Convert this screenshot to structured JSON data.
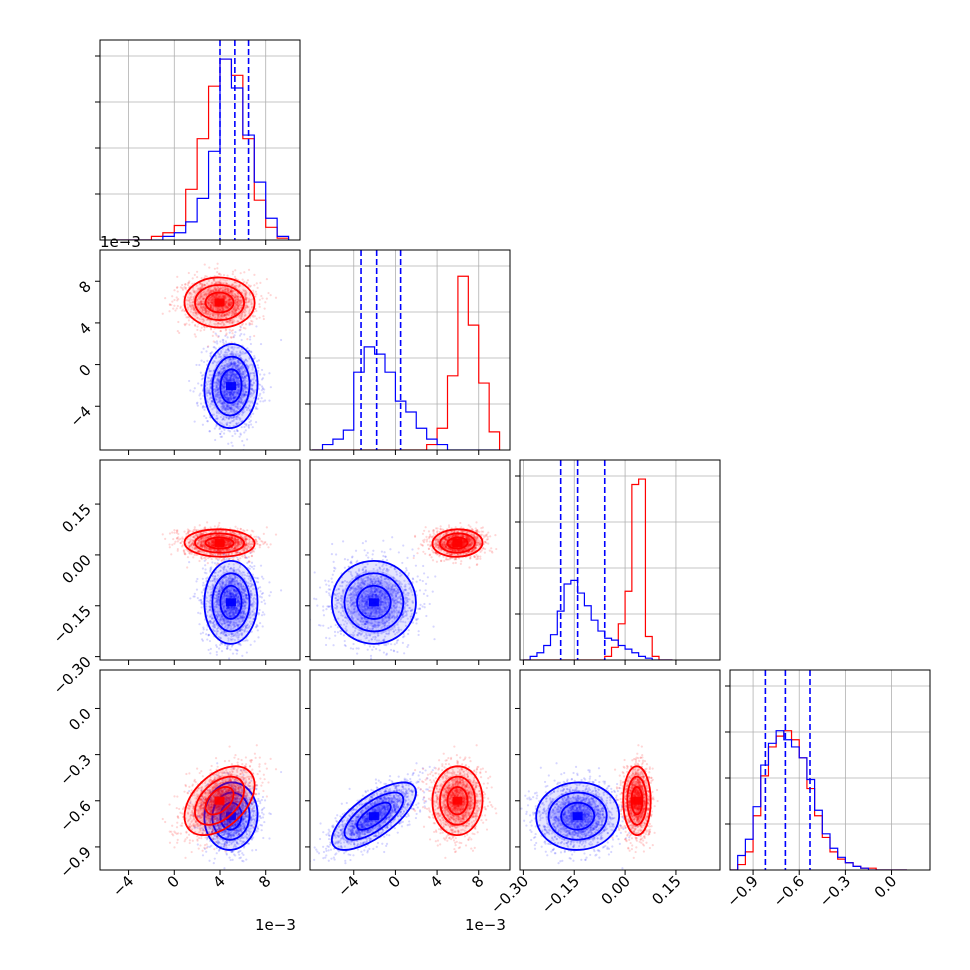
{
  "chart_data": {
    "type": "corner",
    "series": [
      {
        "name": "",
        "color": "#0000ff"
      },
      {
        "name": "",
        "color": "#ff0000"
      }
    ],
    "params": [
      {
        "range": [
          -6.5,
          11
        ],
        "ticks": [
          -4,
          0,
          4,
          8
        ],
        "tick_labels": [
          "−4",
          "0",
          "4",
          "8"
        ],
        "offset_text": "1e−3"
      },
      {
        "range": [
          -8.2,
          11
        ],
        "ticks": [
          -4,
          0,
          4,
          8
        ],
        "tick_labels": [
          "−4",
          "0",
          "4",
          "8"
        ],
        "offset_text": "1e−3"
      },
      {
        "range": [
          -0.31,
          0.28
        ],
        "ticks": [
          -0.3,
          -0.15,
          0.0,
          0.15
        ],
        "tick_labels": [
          "−0.30",
          "−0.15",
          "0.00",
          "0.15"
        ],
        "offset_text": ""
      },
      {
        "range": [
          -1.05,
          0.25
        ],
        "ticks": [
          -0.9,
          -0.6,
          -0.3,
          0.0
        ],
        "tick_labels": [
          "−0.9",
          "−0.6",
          "−0.3",
          "0.0"
        ],
        "offset_text": ""
      }
    ],
    "quantiles": [
      [
        4.0,
        5.3,
        6.5
      ],
      [
        -3.3,
        -1.8,
        0.5
      ],
      [
        -0.19,
        -0.14,
        -0.06
      ],
      [
        -0.82,
        -0.69,
        -0.53
      ]
    ],
    "histograms": [
      {
        "bin_edges": [
          -5.0,
          -4.0,
          -3.0,
          -2.0,
          -1.0,
          0.0,
          1.0,
          2.0,
          3.0,
          4.0,
          5.0,
          6.0,
          7.0,
          8.0,
          9.0,
          10.0
        ],
        "blue": [
          0.0,
          0.0,
          0.0,
          0.0,
          0.02,
          0.04,
          0.1,
          0.23,
          0.49,
          1.0,
          0.84,
          0.58,
          0.32,
          0.12,
          0.02
        ],
        "red": [
          0.0,
          0.0,
          0.0,
          0.02,
          0.04,
          0.08,
          0.28,
          0.56,
          0.85,
          1.0,
          0.91,
          0.56,
          0.22,
          0.07,
          0.01
        ]
      },
      {
        "bin_edges": [
          -8.0,
          -7.0,
          -6.0,
          -5.0,
          -4.0,
          -3.0,
          -2.0,
          -1.0,
          0.0,
          1.0,
          2.0,
          3.0,
          4.0,
          5.0,
          6.0,
          7.0,
          8.0,
          9.0,
          10.0
        ],
        "blue": [
          0.0,
          0.03,
          0.06,
          0.11,
          0.43,
          0.57,
          0.53,
          0.43,
          0.27,
          0.21,
          0.12,
          0.06,
          0.03,
          0.0,
          0.0,
          0.0,
          0.0,
          0.0
        ],
        "red": [
          0.0,
          0.0,
          0.0,
          0.0,
          0.0,
          0.0,
          0.0,
          0.0,
          0.0,
          0.0,
          0.0,
          0.03,
          0.12,
          0.41,
          0.96,
          0.69,
          0.37,
          0.1
        ]
      },
      {
        "bin_edges": [
          -0.3,
          -0.28,
          -0.26,
          -0.24,
          -0.22,
          -0.2,
          -0.18,
          -0.16,
          -0.14,
          -0.12,
          -0.1,
          -0.08,
          -0.06,
          -0.04,
          -0.02,
          0.0,
          0.02,
          0.04,
          0.06,
          0.08,
          0.1,
          0.12,
          0.14
        ],
        "blue": [
          0.0,
          0.02,
          0.04,
          0.08,
          0.14,
          0.27,
          0.42,
          0.44,
          0.37,
          0.3,
          0.22,
          0.16,
          0.12,
          0.11,
          0.08,
          0.06,
          0.04,
          0.02,
          0.01,
          0.0,
          0.0,
          0.0
        ],
        "red": [
          0.0,
          0.0,
          0.0,
          0.0,
          0.0,
          0.0,
          0.0,
          0.0,
          0.0,
          0.0,
          0.0,
          0.0,
          0.02,
          0.07,
          0.2,
          0.38,
          0.97,
          1.0,
          0.13,
          0.02,
          0.0,
          0.0
        ]
      },
      {
        "bin_edges": [
          -1.05,
          -1.0,
          -0.95,
          -0.9,
          -0.85,
          -0.8,
          -0.75,
          -0.7,
          -0.65,
          -0.6,
          -0.55,
          -0.5,
          -0.45,
          -0.4,
          -0.35,
          -0.3,
          -0.25,
          -0.2,
          -0.15,
          -0.1,
          -0.05,
          0.0,
          0.05,
          0.1
        ],
        "blue": [
          0.0,
          0.08,
          0.17,
          0.35,
          0.58,
          0.7,
          0.77,
          0.72,
          0.68,
          0.62,
          0.5,
          0.33,
          0.2,
          0.12,
          0.07,
          0.04,
          0.02,
          0.01,
          0.0,
          0.0,
          0.0,
          0.0,
          0.0
        ],
        "red": [
          0.0,
          0.03,
          0.1,
          0.3,
          0.52,
          0.68,
          0.74,
          0.77,
          0.72,
          0.62,
          0.45,
          0.3,
          0.18,
          0.1,
          0.06,
          0.04,
          0.02,
          0.01,
          0.01,
          0.0,
          0.0,
          0.0,
          0.0
        ]
      }
    ],
    "clusters": {
      "blue": {
        "means": [
          5.0,
          -2.0,
          -0.14,
          -0.7
        ],
        "sds": [
          1.2,
          2.0,
          0.06,
          0.11
        ],
        "corr_3_1": 0.7
      },
      "red": {
        "means": [
          4.0,
          6.0,
          0.035,
          -0.6
        ],
        "sds": [
          1.5,
          1.2,
          0.02,
          0.11
        ],
        "corr_3_0": 0.45
      }
    }
  }
}
